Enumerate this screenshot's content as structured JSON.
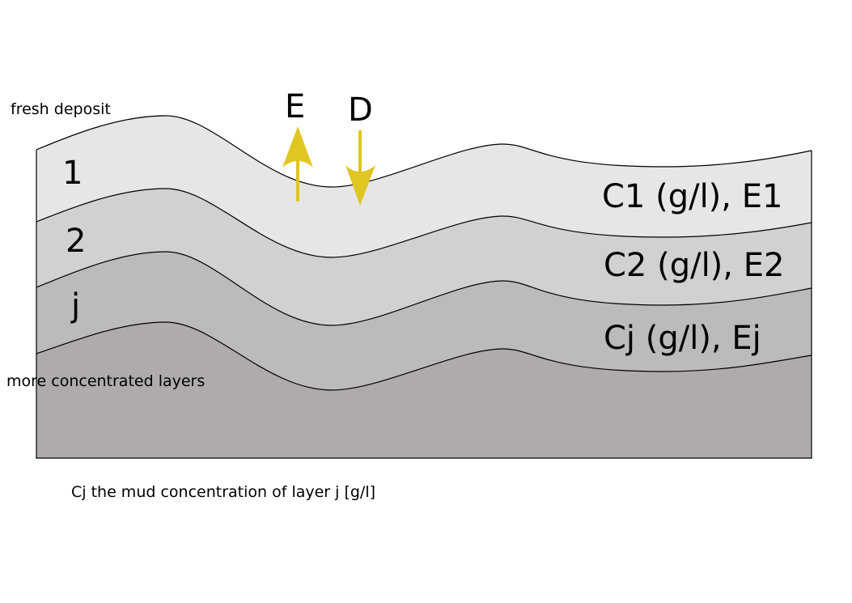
{
  "labels": {
    "fresh_deposit": "fresh deposit",
    "more_concentrated": "more concentrated layers",
    "caption": "Cj the mud concentration of layer j [g/l]"
  },
  "layers": [
    {
      "index": "1",
      "property": "C1 (g/l), E1",
      "fill": "#e6e6e6"
    },
    {
      "index": "2",
      "property": "C2 (g/l), E2",
      "fill": "#d2d0d3"
    },
    {
      "index": "j",
      "property": "Cj (g/l), Ej",
      "fill": "#bcbabb"
    },
    {
      "index": "",
      "property": "",
      "fill": "#aeaaad"
    }
  ],
  "fluxes": {
    "erosion": {
      "label": "E",
      "direction": "up"
    },
    "deposition": {
      "label": "D",
      "direction": "down"
    },
    "color": "#e0c620"
  },
  "outline_color": "#000000"
}
